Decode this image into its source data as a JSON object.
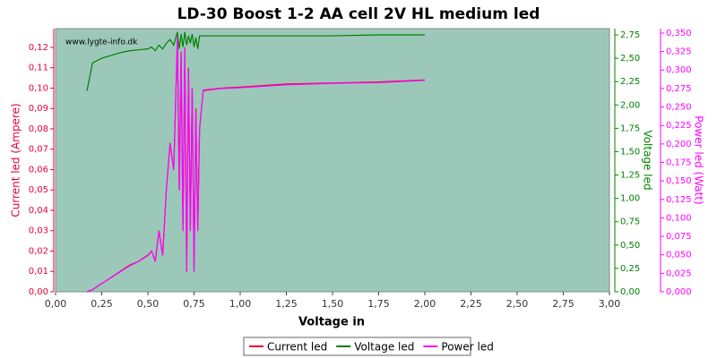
{
  "chart_data": {
    "type": "line",
    "title": "LD-30 Boost 1-2 AA cell 2V HL medium led",
    "watermark": "www.lygte-info.dk",
    "xlabel": "Voltage in",
    "ylabel": "Current led (Ampere)",
    "y2label": "Voltage led",
    "y3label": "Power led (Watt)",
    "legend": "bottom",
    "grid": false,
    "background": "#9cc8b9",
    "x": [
      0.17,
      0.2,
      0.25,
      0.3,
      0.35,
      0.4,
      0.45,
      0.5,
      0.52,
      0.54,
      0.56,
      0.58,
      0.6,
      0.62,
      0.64,
      0.66,
      0.67,
      0.68,
      0.69,
      0.7,
      0.71,
      0.72,
      0.73,
      0.74,
      0.75,
      0.76,
      0.77,
      0.78,
      0.8,
      0.9,
      1.0,
      1.25,
      1.5,
      1.75,
      2.0
    ],
    "xlim": [
      0,
      3
    ],
    "xticks": [
      {
        "value": 0,
        "label": "0,00"
      },
      {
        "value": 0.25,
        "label": "0,25"
      },
      {
        "value": 0.5,
        "label": "0,50"
      },
      {
        "value": 0.75,
        "label": "0,75"
      },
      {
        "value": 1,
        "label": "1,00"
      },
      {
        "value": 1.25,
        "label": "1,25"
      },
      {
        "value": 1.5,
        "label": "1,50"
      },
      {
        "value": 1.75,
        "label": "1,75"
      },
      {
        "value": 2,
        "label": "2,00"
      },
      {
        "value": 2.25,
        "label": "2,25"
      },
      {
        "value": 2.5,
        "label": "2,50"
      },
      {
        "value": 2.75,
        "label": "2,75"
      },
      {
        "value": 3,
        "label": "3,00"
      }
    ],
    "ylim": [
      0,
      0.1292
    ],
    "yticks": [
      {
        "value": 0,
        "label": "0,00"
      },
      {
        "value": 0.01,
        "label": "0,01"
      },
      {
        "value": 0.02,
        "label": "0,02"
      },
      {
        "value": 0.03,
        "label": "0,03"
      },
      {
        "value": 0.04,
        "label": "0,04"
      },
      {
        "value": 0.05,
        "label": "0,05"
      },
      {
        "value": 0.06,
        "label": "0,06"
      },
      {
        "value": 0.07,
        "label": "0,07"
      },
      {
        "value": 0.08,
        "label": "0,08"
      },
      {
        "value": 0.09,
        "label": "0,09"
      },
      {
        "value": 0.1,
        "label": "0,10"
      },
      {
        "value": 0.11,
        "label": "0,11"
      },
      {
        "value": 0.12,
        "label": "0,12"
      }
    ],
    "y2lim": [
      0,
      2.817
    ],
    "y2ticks": [
      {
        "value": 0,
        "label": "0,00"
      },
      {
        "value": 0.25,
        "label": "0,25"
      },
      {
        "value": 0.5,
        "label": "0,50"
      },
      {
        "value": 0.75,
        "label": "0,75"
      },
      {
        "value": 1,
        "label": "1,00"
      },
      {
        "value": 1.25,
        "label": "1,25"
      },
      {
        "value": 1.5,
        "label": "1,50"
      },
      {
        "value": 1.75,
        "label": "1,75"
      },
      {
        "value": 2,
        "label": "2,00"
      },
      {
        "value": 2.25,
        "label": "2,25"
      },
      {
        "value": 2.5,
        "label": "2,50"
      },
      {
        "value": 2.75,
        "label": "2,75"
      }
    ],
    "y3lim": [
      0,
      0.356
    ],
    "y3ticks": [
      {
        "value": 0,
        "label": "0,000"
      },
      {
        "value": 0.025,
        "label": "0,025"
      },
      {
        "value": 0.05,
        "label": "0,050"
      },
      {
        "value": 0.075,
        "label": "0,075"
      },
      {
        "value": 0.1,
        "label": "0,100"
      },
      {
        "value": 0.125,
        "label": "0,125"
      },
      {
        "value": 0.15,
        "label": "0,150"
      },
      {
        "value": 0.175,
        "label": "0,175"
      },
      {
        "value": 0.2,
        "label": "0,200"
      },
      {
        "value": 0.225,
        "label": "0,225"
      },
      {
        "value": 0.25,
        "label": "0,250"
      },
      {
        "value": 0.275,
        "label": "0,275"
      },
      {
        "value": 0.3,
        "label": "0,300"
      },
      {
        "value": 0.325,
        "label": "0,325"
      },
      {
        "value": 0.35,
        "label": "0,350"
      }
    ],
    "series": [
      {
        "name": "Current led",
        "color": "#e8003a",
        "axis": "y",
        "values": [
          0,
          0.001,
          0.004,
          0.007,
          0.01,
          0.013,
          0.015,
          0.018,
          0.02,
          0.015,
          0.03,
          0.018,
          0.05,
          0.073,
          0.06,
          0.124,
          0.05,
          0.118,
          0.03,
          0.12,
          0.01,
          0.11,
          0.03,
          0.1,
          0.01,
          0.09,
          0.03,
          0.08,
          0.099,
          0.1,
          0.1005,
          0.102,
          0.1025,
          0.103,
          0.104
        ]
      },
      {
        "name": "Voltage led",
        "color": "#008000",
        "axis": "y2",
        "values": [
          2.15,
          2.45,
          2.5,
          2.53,
          2.56,
          2.58,
          2.59,
          2.6,
          2.62,
          2.58,
          2.64,
          2.6,
          2.66,
          2.7,
          2.64,
          2.78,
          2.6,
          2.76,
          2.62,
          2.78,
          2.64,
          2.74,
          2.66,
          2.76,
          2.62,
          2.72,
          2.6,
          2.74,
          2.74,
          2.74,
          2.74,
          2.74,
          2.74,
          2.75,
          2.75
        ]
      },
      {
        "name": "Power led",
        "color": "#ff00ff",
        "axis": "y3",
        "values": [
          0,
          0.003,
          0.011,
          0.019,
          0.027,
          0.035,
          0.041,
          0.049,
          0.055,
          0.041,
          0.082,
          0.049,
          0.137,
          0.2,
          0.165,
          0.345,
          0.137,
          0.325,
          0.082,
          0.33,
          0.027,
          0.3,
          0.082,
          0.275,
          0.027,
          0.245,
          0.082,
          0.22,
          0.272,
          0.275,
          0.276,
          0.28,
          0.282,
          0.283,
          0.286
        ]
      }
    ]
  }
}
